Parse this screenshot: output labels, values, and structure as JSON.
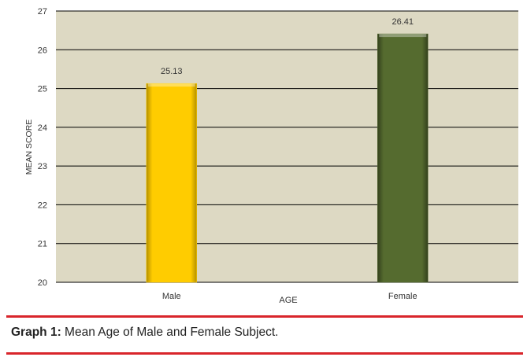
{
  "chart_data": {
    "type": "bar",
    "categories": [
      "Male",
      "Female"
    ],
    "values": [
      25.13,
      26.41
    ],
    "data_labels": [
      "25.13",
      "26.41"
    ],
    "bar_colors": [
      "#FFCC00",
      "#556B2F"
    ],
    "xlabel": "AGE",
    "ylabel": "MEAN SCORE",
    "ylim": [
      20,
      27
    ],
    "y_ticks": [
      "20",
      "21",
      "22",
      "23",
      "24",
      "25",
      "26",
      "27"
    ],
    "grid": true,
    "plot_background": "#DDD9C3"
  },
  "caption": {
    "label": "Graph 1:",
    "text": " Mean Age of Male and Female Subject."
  },
  "colors": {
    "caption_rule": "#D9252B"
  }
}
